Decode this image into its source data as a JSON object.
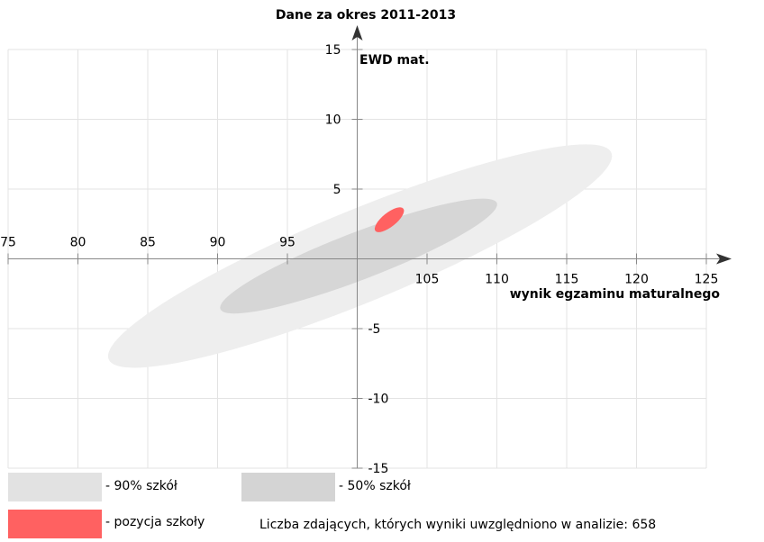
{
  "chart_data": {
    "type": "scatter",
    "title": "Dane za okres 2011-2013",
    "xlabel": "wynik egzaminu maturalnego",
    "ylabel": "EWD mat.",
    "xlim": [
      75,
      125
    ],
    "ylim": [
      -15,
      15
    ],
    "xticks": [
      75,
      80,
      85,
      90,
      95,
      105,
      110,
      115,
      120,
      125
    ],
    "yticks": [
      15,
      10,
      5,
      -5,
      -10,
      -15
    ],
    "grid": true,
    "ellipses": [
      {
        "name": "- 90% szkół",
        "center": [
          100.2,
          0.2
        ],
        "endpoints": [
          [
            82.2,
            -7.2
          ],
          [
            118.2,
            7.6
          ]
        ],
        "semi_minor": 3.3,
        "color": "#eeeeee"
      },
      {
        "name": "- 50% szkół",
        "center": [
          100.1,
          0.2
        ],
        "endpoints": [
          [
            90.2,
            -3.6
          ],
          [
            110.0,
            4.0
          ]
        ],
        "semi_minor": 1.7,
        "color": "#d6d6d6"
      },
      {
        "name": "- pozycja szkoły",
        "center": [
          102.3,
          2.8
        ],
        "endpoints": [
          [
            101.3,
            2.0
          ],
          [
            103.3,
            3.6
          ]
        ],
        "semi_minor": 0.5,
        "color": "#ff6161"
      }
    ]
  },
  "legend": {
    "items": [
      {
        "label": "- 90% szkół",
        "color": "#e2e2e2"
      },
      {
        "label": "- 50% szkół",
        "color": "#d4d4d4"
      },
      {
        "label": "- pozycja szkoły",
        "color": "#ff6161"
      }
    ]
  },
  "footnote": "Liczba zdających, których wyniki uwzględniono w analizie: 658"
}
